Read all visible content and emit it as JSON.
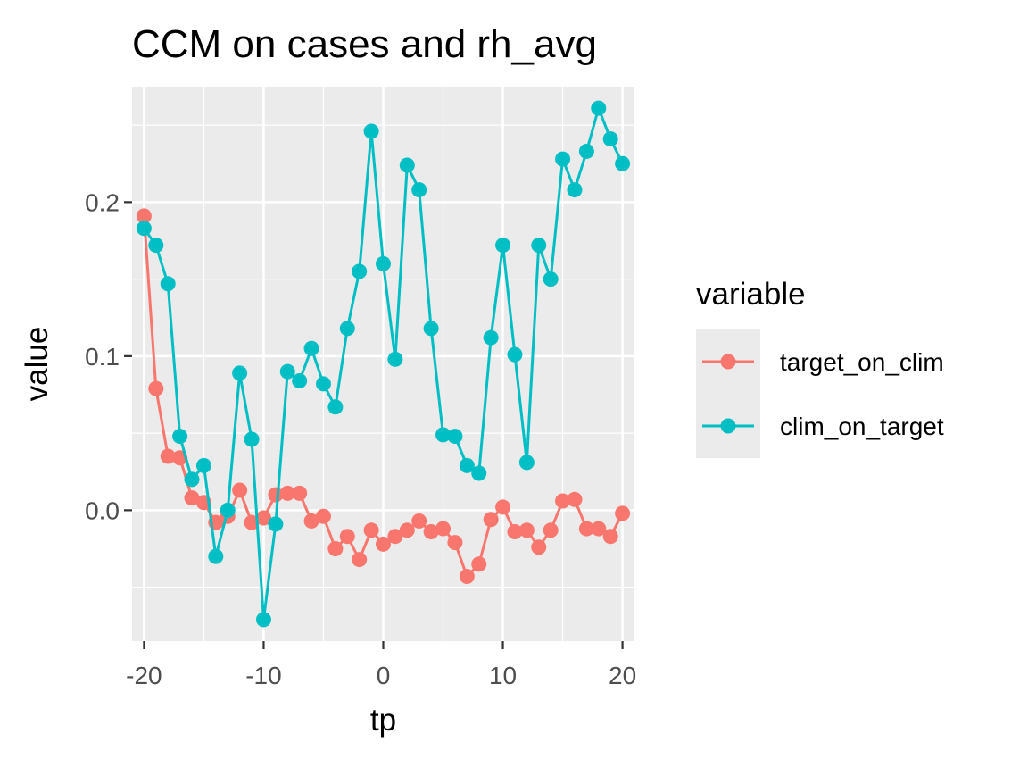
{
  "chart_data": {
    "type": "line",
    "title": "CCM on cases and rh_avg",
    "xlabel": "tp",
    "ylabel": "value",
    "xlim": [
      -21,
      21
    ],
    "ylim": [
      -0.085,
      0.275
    ],
    "xticks": [
      -20,
      -10,
      0,
      10,
      20
    ],
    "xtick_labels": [
      "-20",
      "-10",
      "0",
      "10",
      "20"
    ],
    "yticks": [
      0.0,
      0.1,
      0.2
    ],
    "ytick_labels": [
      "0.0",
      "0.1",
      "0.2"
    ],
    "grid": true,
    "legend_title": "variable",
    "legend_position": "right",
    "x": [
      -20,
      -19,
      -18,
      -17,
      -16,
      -15,
      -14,
      -13,
      -12,
      -11,
      -10,
      -9,
      -8,
      -7,
      -6,
      -5,
      -4,
      -3,
      -2,
      -1,
      0,
      1,
      2,
      3,
      4,
      5,
      6,
      7,
      8,
      9,
      10,
      11,
      12,
      13,
      14,
      15,
      16,
      17,
      18,
      19,
      20
    ],
    "series": [
      {
        "name": "target_on_clim",
        "color": "#F8766D",
        "values": [
          0.191,
          0.079,
          0.035,
          0.034,
          0.008,
          0.005,
          -0.008,
          -0.004,
          0.013,
          -0.008,
          -0.005,
          0.01,
          0.011,
          0.011,
          -0.007,
          -0.004,
          -0.025,
          -0.017,
          -0.032,
          -0.013,
          -0.022,
          -0.017,
          -0.013,
          -0.007,
          -0.014,
          -0.012,
          -0.021,
          -0.043,
          -0.035,
          -0.006,
          0.002,
          -0.014,
          -0.013,
          -0.024,
          -0.013,
          0.006,
          0.007,
          -0.012,
          -0.012,
          -0.017,
          -0.002
        ]
      },
      {
        "name": "clim_on_target",
        "color": "#00BFC4",
        "values": [
          0.183,
          0.172,
          0.147,
          0.048,
          0.02,
          0.029,
          -0.03,
          0.0,
          0.089,
          0.046,
          -0.071,
          -0.009,
          0.09,
          0.084,
          0.105,
          0.082,
          0.067,
          0.118,
          0.155,
          0.246,
          0.16,
          0.098,
          0.224,
          0.208,
          0.118,
          0.049,
          0.048,
          0.029,
          0.024,
          0.112,
          0.172,
          0.101,
          0.031,
          0.172,
          0.15,
          0.228,
          0.208,
          0.233,
          0.261,
          0.241,
          0.225
        ]
      }
    ]
  }
}
